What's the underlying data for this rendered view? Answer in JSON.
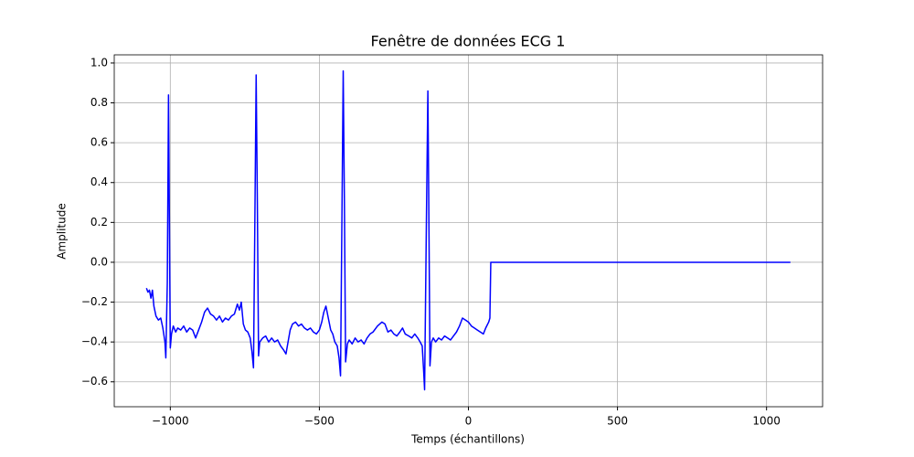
{
  "chart_data": {
    "type": "line",
    "title": "Fenêtre de données ECG 1",
    "xlabel": "Temps (échantillons)",
    "ylabel": "Amplitude",
    "x": [
      -1080,
      -1075,
      -1070,
      -1065,
      -1060,
      -1055,
      -1048,
      -1040,
      -1032,
      -1025,
      -1018,
      -1015,
      -1010,
      -1006,
      -1003,
      -1000,
      -996,
      -990,
      -982,
      -975,
      -965,
      -955,
      -945,
      -935,
      -925,
      -915,
      -905,
      -895,
      -885,
      -875,
      -865,
      -855,
      -845,
      -835,
      -825,
      -815,
      -805,
      -795,
      -785,
      -775,
      -768,
      -762,
      -755,
      -748,
      -740,
      -732,
      -726,
      -721,
      -717,
      -712,
      -708,
      -704,
      -700,
      -690,
      -680,
      -670,
      -660,
      -650,
      -640,
      -630,
      -620,
      -612,
      -605,
      -598,
      -590,
      -580,
      -570,
      -560,
      -550,
      -540,
      -530,
      -520,
      -510,
      -500,
      -492,
      -485,
      -478,
      -470,
      -462,
      -455,
      -448,
      -440,
      -434,
      -429,
      -425,
      -420,
      -416,
      -412,
      -406,
      -400,
      -390,
      -380,
      -370,
      -360,
      -350,
      -340,
      -330,
      -320,
      -305,
      -290,
      -280,
      -270,
      -260,
      -250,
      -240,
      -230,
      -221,
      -212,
      -200,
      -190,
      -180,
      -170,
      -162,
      -155,
      -150,
      -147,
      -141,
      -136,
      -133,
      -129,
      -124,
      -118,
      -110,
      -100,
      -90,
      -80,
      -70,
      -60,
      -50,
      -40,
      -30,
      -20,
      -10,
      0,
      10,
      20,
      30,
      40,
      50,
      58,
      68,
      72,
      75,
      1080
    ],
    "series": [
      {
        "color": "#0000ff",
        "values": [
          -0.13,
          -0.15,
          -0.14,
          -0.18,
          -0.14,
          -0.22,
          -0.27,
          -0.29,
          -0.28,
          -0.33,
          -0.4,
          -0.48,
          -0.1,
          0.84,
          0.2,
          -0.43,
          -0.36,
          -0.32,
          -0.35,
          -0.33,
          -0.34,
          -0.32,
          -0.35,
          -0.33,
          -0.34,
          -0.38,
          -0.34,
          -0.3,
          -0.25,
          -0.23,
          -0.26,
          -0.27,
          -0.29,
          -0.27,
          -0.3,
          -0.28,
          -0.29,
          -0.27,
          -0.26,
          -0.21,
          -0.24,
          -0.2,
          -0.31,
          -0.34,
          -0.35,
          -0.38,
          -0.45,
          -0.53,
          0.1,
          0.94,
          0.3,
          -0.47,
          -0.4,
          -0.38,
          -0.37,
          -0.4,
          -0.38,
          -0.4,
          -0.39,
          -0.42,
          -0.44,
          -0.46,
          -0.4,
          -0.34,
          -0.31,
          -0.3,
          -0.32,
          -0.31,
          -0.33,
          -0.34,
          -0.33,
          -0.35,
          -0.36,
          -0.34,
          -0.3,
          -0.25,
          -0.22,
          -0.28,
          -0.34,
          -0.36,
          -0.4,
          -0.42,
          -0.48,
          -0.57,
          0.1,
          0.96,
          0.3,
          -0.5,
          -0.41,
          -0.39,
          -0.41,
          -0.38,
          -0.4,
          -0.39,
          -0.41,
          -0.38,
          -0.36,
          -0.35,
          -0.32,
          -0.3,
          -0.31,
          -0.35,
          -0.34,
          -0.36,
          -0.37,
          -0.35,
          -0.33,
          -0.36,
          -0.37,
          -0.38,
          -0.36,
          -0.38,
          -0.4,
          -0.42,
          -0.55,
          -0.64,
          0.2,
          0.86,
          0.3,
          -0.52,
          -0.4,
          -0.38,
          -0.4,
          -0.38,
          -0.39,
          -0.37,
          -0.38,
          -0.39,
          -0.37,
          -0.35,
          -0.32,
          -0.28,
          -0.29,
          -0.3,
          -0.32,
          -0.33,
          -0.34,
          -0.35,
          -0.36,
          -0.33,
          -0.3,
          -0.28,
          0.0,
          0.0
        ]
      }
    ],
    "xlim": [
      -1188,
      1188
    ],
    "ylim": [
      -0.725,
      1.041
    ],
    "xticks": [
      {
        "value": -1000,
        "label": "−1000"
      },
      {
        "value": -500,
        "label": "−500"
      },
      0,
      500,
      1000
    ],
    "yticks": [
      {
        "value": -0.6,
        "label": "−0.6"
      },
      {
        "value": -0.4,
        "label": "−0.4"
      },
      {
        "value": -0.2,
        "label": "−0.2"
      },
      {
        "value": 0,
        "label": "0.0"
      },
      0.2,
      0.4,
      0.6,
      0.8,
      {
        "value": 1,
        "label": "1.0"
      }
    ],
    "grid": true
  }
}
